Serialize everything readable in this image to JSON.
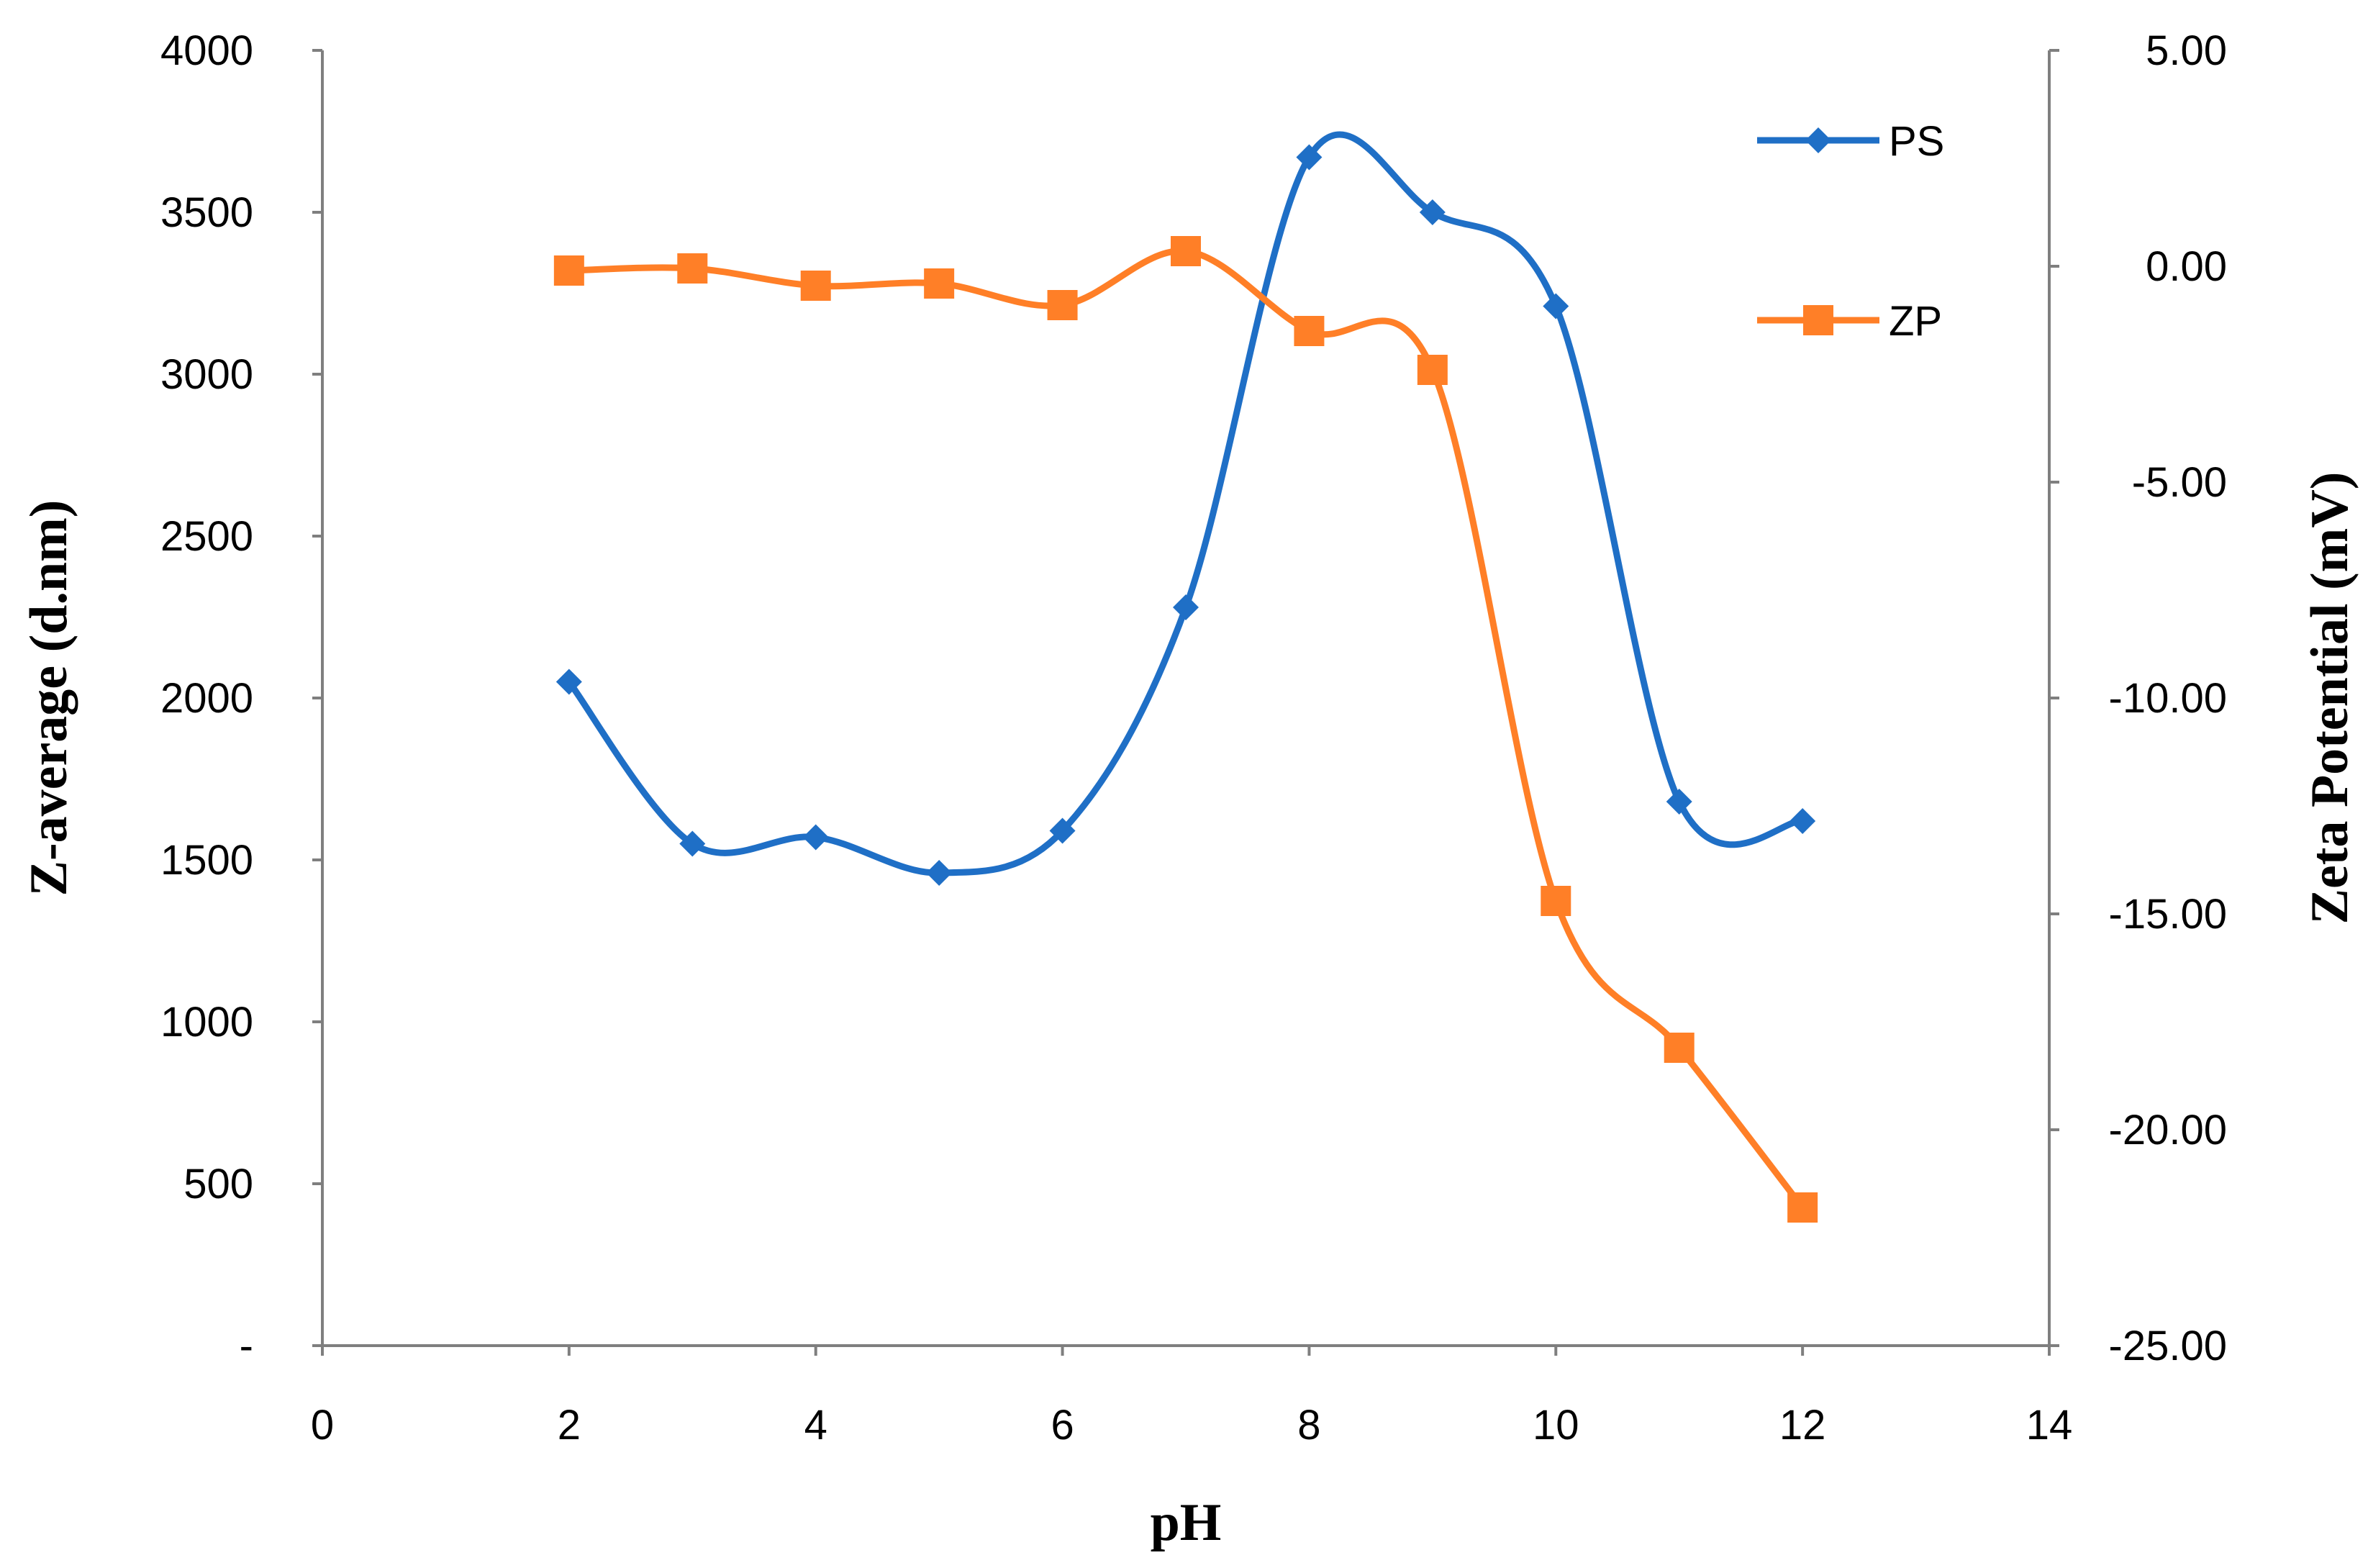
{
  "chart_data": {
    "type": "line",
    "xlabel": "pH",
    "ylabel_left": "Z-average (d.nm)",
    "ylabel_right": "Zeta Potential (mV)",
    "xlim": [
      0,
      14
    ],
    "x_ticks": [
      "0",
      "2",
      "4",
      "6",
      "8",
      "10",
      "12",
      "14"
    ],
    "ylim_left": [
      0,
      4000
    ],
    "y_ticks_left": [
      "-",
      "500",
      "1000",
      "1500",
      "2000",
      "2500",
      "3000",
      "3500",
      "4000"
    ],
    "ylim_right": [
      -25,
      5
    ],
    "y_ticks_right": [
      "-25.00",
      "-20.00",
      "-15.00",
      "-10.00",
      "-5.00",
      "0.00",
      "5.00"
    ],
    "grid": false,
    "legend_position": "top-right",
    "smooth": true,
    "series": [
      {
        "name": "PS",
        "axis": "left",
        "color": "#1f6fc6",
        "marker": "diamond",
        "x": [
          2,
          3,
          4,
          5,
          6,
          7,
          8,
          9,
          10,
          11,
          12
        ],
        "y": [
          2050,
          1550,
          1570,
          1460,
          1590,
          2280,
          3670,
          3500,
          3210,
          1680,
          1620
        ]
      },
      {
        "name": "ZP",
        "axis": "right",
        "color": "#ff7f27",
        "marker": "square",
        "x": [
          2,
          3,
          4,
          5,
          6,
          7,
          8,
          9,
          10,
          11,
          12
        ],
        "y": [
          -0.1,
          -0.05,
          -0.45,
          -0.4,
          -0.9,
          0.35,
          -1.5,
          -2.4,
          -14.7,
          -18.1,
          -21.8
        ]
      }
    ]
  }
}
